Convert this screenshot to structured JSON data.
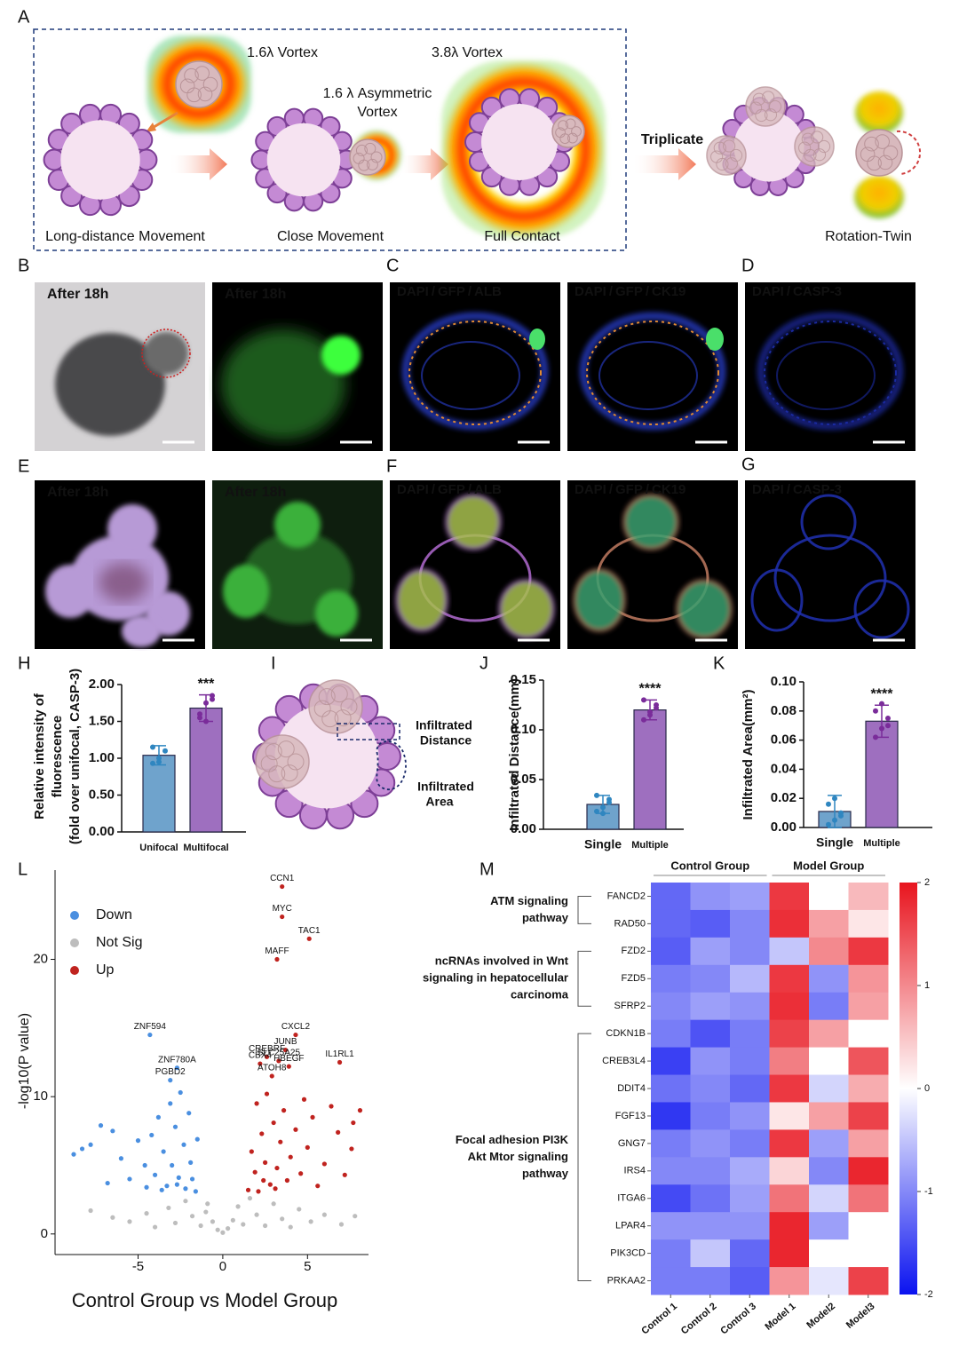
{
  "panel_labels": [
    "A",
    "B",
    "C",
    "D",
    "E",
    "F",
    "G",
    "H",
    "I",
    "J",
    "K",
    "L",
    "M"
  ],
  "schematic": {
    "vortex_small": "1.6λ Vortex",
    "vortex_large": "3.8λ Vortex",
    "asymmetric_vortex": [
      "1.6 λ Asymmetric",
      "Vortex"
    ],
    "triplicate": "Triplicate",
    "steps": [
      "Long-distance Movement",
      "Close Movement",
      "Full Contact",
      "Rotation-Twin"
    ]
  },
  "separator": "/",
  "images": [
    {
      "caption": "After 18h"
    },
    {
      "caption": "After 18h"
    },
    {
      "stains": [
        {
          "text": "DAPI",
          "color": "#1f6fd6"
        },
        {
          "text": "GFP",
          "color": "#2fbf3f"
        },
        {
          "text": "ALB",
          "color": "#f08a24"
        }
      ]
    },
    {
      "stains": [
        {
          "text": "DAPI",
          "color": "#1f6fd6"
        },
        {
          "text": "GFP",
          "color": "#2fbf3f"
        },
        {
          "text": "CK19",
          "color": "#f08a24"
        }
      ]
    },
    {
      "stains": [
        {
          "text": "DAPI",
          "color": "#1f6fd6"
        },
        {
          "text": "CASP-3",
          "color": "#f08a24"
        }
      ]
    },
    {
      "caption": "After 18h"
    },
    {
      "caption": "After 18h"
    },
    {
      "stains": [
        {
          "text": "DAPI",
          "color": "#1f6fd6"
        },
        {
          "text": "GFP",
          "color": "#2fbf3f"
        },
        {
          "text": "ALB",
          "color": "#f08a24"
        }
      ]
    },
    {
      "stains": [
        {
          "text": "DAPI",
          "color": "#1f6fd6"
        },
        {
          "text": "GFP",
          "color": "#2fbf3f"
        },
        {
          "text": "CK19",
          "color": "#f08a24"
        }
      ]
    },
    {
      "stains": [
        {
          "text": "DAPI",
          "color": "#1f6fd6"
        },
        {
          "text": "CASP-3",
          "color": "#f08a24"
        }
      ]
    }
  ],
  "infiltration_diagram": {
    "distance": [
      "Infiltrated",
      "Distance"
    ],
    "area": [
      "Infiltrated",
      "Area"
    ]
  },
  "chart_data": [
    {
      "type": "bar",
      "categories": [
        "Unifocal",
        "Multifocal"
      ],
      "values": [
        1.04,
        1.68
      ],
      "errors": [
        0.13,
        0.18
      ],
      "points": [
        [
          0.93,
          1.0,
          1.1,
          1.15,
          0.95
        ],
        [
          1.55,
          1.75,
          1.85,
          1.6,
          1.5,
          1.8
        ]
      ],
      "colors": [
        "#6fa3cc",
        "#9e6fbf"
      ],
      "point_colors": [
        "#2f86c0",
        "#7a2c9a"
      ],
      "ylim": [
        0,
        2
      ],
      "yticks": [
        {
          "value": 0,
          "label": "0.00"
        },
        {
          "value": 0.5,
          "label": "0.50"
        },
        {
          "value": 1,
          "label": "1.00"
        },
        {
          "value": 1.5,
          "label": "1.50"
        },
        {
          "value": 2,
          "label": "2.00"
        }
      ],
      "ylabel": [
        "Relative intensity of",
        "fluorescence",
        "(fold over unifocal,  CASP-3)"
      ],
      "significance": "***"
    },
    {
      "type": "bar",
      "categories": [
        "Single",
        "Multiple"
      ],
      "values": [
        0.025,
        0.12
      ],
      "errors": [
        0.009,
        0.01
      ],
      "points": [
        [
          0.018,
          0.022,
          0.03,
          0.034,
          0.016,
          0.027
        ],
        [
          0.11,
          0.118,
          0.125,
          0.13,
          0.115,
          0.122
        ]
      ],
      "colors": [
        "#6fa3cc",
        "#9e6fbf"
      ],
      "point_colors": [
        "#2f86c0",
        "#7a2c9a"
      ],
      "ylim": [
        0,
        0.15
      ],
      "yticks": [
        {
          "value": 0,
          "label": "0.00"
        },
        {
          "value": 0.05,
          "label": "0.05"
        },
        {
          "value": 0.1,
          "label": "0.10"
        },
        {
          "value": 0.15,
          "label": "0.15"
        }
      ],
      "ylabel": "Infiltrated Distance(mm)",
      "significance": "****"
    },
    {
      "type": "bar",
      "categories": [
        "Single",
        "Multiple"
      ],
      "values": [
        0.011,
        0.073
      ],
      "errors": [
        0.011,
        0.011
      ],
      "points": [
        [
          0.002,
          0.005,
          0.01,
          0.016,
          0.02,
          0.008
        ],
        [
          0.062,
          0.068,
          0.075,
          0.08,
          0.085,
          0.07
        ]
      ],
      "colors": [
        "#6fa3cc",
        "#9e6fbf"
      ],
      "point_colors": [
        "#2f86c0",
        "#7a2c9a"
      ],
      "ylim": [
        0,
        0.1
      ],
      "yticks": [
        {
          "value": 0,
          "label": "0.00"
        },
        {
          "value": 0.02,
          "label": "0.02"
        },
        {
          "value": 0.04,
          "label": "0.04"
        },
        {
          "value": 0.06,
          "label": "0.06"
        },
        {
          "value": 0.08,
          "label": "0.08"
        },
        {
          "value": 0.1,
          "label": "0.10"
        }
      ],
      "ylabel": "Infiltrated Area(mm²)",
      "significance": "****"
    },
    {
      "type": "scatter",
      "xlabel": "Control Group vs Model Group",
      "ylabel": "-log10(P value)",
      "xlim": [
        -9.9,
        8.6
      ],
      "ylim": [
        -1.5,
        26.5
      ],
      "xticks": [
        -5,
        0,
        5
      ],
      "yticks": [
        0,
        10,
        20
      ],
      "series": [
        {
          "name": "Down",
          "color": "#4a8fe0",
          "x": [
            -8.8,
            -8.3,
            -7.2,
            -6.5,
            -6,
            -5.5,
            -5,
            -4.6,
            -4.2,
            -4,
            -3.8,
            -3.5,
            -3.3,
            -3.1,
            -3,
            -2.8,
            -2.6,
            -2.5,
            -2.3,
            -2.2,
            -2,
            -1.9,
            -1.8,
            -1.6,
            -1.5,
            -2.7,
            -3.6,
            -4.5,
            -6.8,
            -7.8
          ],
          "values": [
            5.8,
            6.2,
            7.9,
            7.5,
            5.5,
            4,
            6.8,
            5,
            7.2,
            4.3,
            8.5,
            6,
            3.5,
            9.5,
            5,
            7.8,
            4.1,
            10.3,
            6.5,
            3.3,
            8.8,
            5.2,
            4,
            3.1,
            6.9,
            3.6,
            3.2,
            3.4,
            3.7,
            6.5
          ]
        },
        {
          "name": "Not Sig",
          "color": "#bdbdbd",
          "x": [
            -7.8,
            -6.5,
            -5.5,
            -4.5,
            -4,
            -3.2,
            -2.8,
            -2.2,
            -1.8,
            -1.3,
            -0.9,
            -0.6,
            -0.3,
            0,
            0.3,
            0.6,
            0.9,
            1.2,
            1.6,
            2,
            2.5,
            3,
            3.5,
            4,
            4.5,
            5.2,
            6,
            7,
            7.8,
            -1
          ],
          "values": [
            1.7,
            1.2,
            0.9,
            1.5,
            0.5,
            1.9,
            0.8,
            2.4,
            1.3,
            0.6,
            2.2,
            0.9,
            0.3,
            0.1,
            0.4,
            1,
            2,
            0.7,
            2.6,
            1.4,
            0.6,
            2.2,
            1.1,
            0.5,
            1.8,
            0.9,
            1.4,
            0.7,
            1.3,
            1.6
          ]
        },
        {
          "name": "Up",
          "color": "#c0231f",
          "x": [
            1.5,
            1.7,
            1.9,
            2,
            2.1,
            2.3,
            2.5,
            2.6,
            2.8,
            3,
            3.2,
            3.4,
            3.6,
            3.8,
            4,
            4.3,
            4.6,
            5,
            5.3,
            5.6,
            6,
            6.4,
            6.8,
            7.2,
            7.7,
            7.6,
            8.1,
            4.8,
            2.4,
            3.1
          ],
          "values": [
            3.2,
            6,
            4.5,
            9.5,
            3.1,
            7.3,
            5.2,
            10.2,
            3.6,
            8.1,
            4.8,
            6.7,
            9,
            3.9,
            5.6,
            7.6,
            4.4,
            6.3,
            8.5,
            3.5,
            5.1,
            9.3,
            7.4,
            4.3,
            8.1,
            6.2,
            9,
            9.8,
            3.9,
            3.3
          ]
        }
      ],
      "annotations": [
        {
          "text": "CCN1",
          "x": 3.5,
          "y": 25.3
        },
        {
          "text": "MYC",
          "x": 3.5,
          "y": 23.1
        },
        {
          "text": "TAC1",
          "x": 5.1,
          "y": 21.5
        },
        {
          "text": "MAFF",
          "x": 3.2,
          "y": 20
        },
        {
          "text": "CXCL2",
          "x": 4.3,
          "y": 14.5
        },
        {
          "text": "JUNB",
          "x": 3.7,
          "y": 13.4
        },
        {
          "text": "IL1RL1",
          "x": 6.9,
          "y": 12.5
        },
        {
          "text": "CREBRF",
          "x": 2.6,
          "y": 12.9
        },
        {
          "text": "SLC25A25",
          "x": 3.3,
          "y": 12.6
        },
        {
          "text": "HBEGF",
          "x": 3.9,
          "y": 12.2
        },
        {
          "text": "CBX4",
          "x": 2.2,
          "y": 12.4
        },
        {
          "text": "ATOH8",
          "x": 2.9,
          "y": 11.5
        },
        {
          "text": "ZNF594",
          "x": -4.3,
          "y": 14.5
        },
        {
          "text": "ZNF780A",
          "x": -2.7,
          "y": 12.1
        },
        {
          "text": "PGBD2",
          "x": -3.1,
          "y": 11.2
        }
      ]
    },
    {
      "type": "heatmap",
      "column_groups": [
        {
          "name": "Control Group",
          "columns": [
            "Control 1",
            "Control 2",
            "Control 3"
          ]
        },
        {
          "name": "Model Group",
          "columns": [
            "Model 1",
            "Model2",
            "Model3"
          ]
        }
      ],
      "row_groups": [
        {
          "label": [
            "ATM signaling",
            "pathway"
          ],
          "genes": [
            "FANCD2",
            "RAD50"
          ],
          "values": [
            [
              -1.1,
              -0.7,
              -0.6,
              1.6,
              0.0,
              0.4
            ],
            [
              -1.1,
              -1.2,
              -0.8,
              1.7,
              0.6,
              0.1
            ]
          ]
        },
        {
          "label": [
            "ncRNAs involved in Wnt",
            "signaling in hepatocellular",
            "carcinoma"
          ],
          "genes": [
            "FZD2",
            "FZD5",
            "SFRP2"
          ],
          "values": [
            [
              -1.2,
              -0.6,
              -0.8,
              -0.3,
              0.8,
              1.6
            ],
            [
              -0.9,
              -0.8,
              -0.4,
              1.6,
              -0.7,
              0.7
            ],
            [
              -0.8,
              -0.6,
              -0.7,
              1.7,
              -0.9,
              0.6
            ]
          ]
        },
        {
          "label": [
            "Focal adhesion PI3K",
            "Akt Mtor signaling",
            "pathway"
          ],
          "genes": [
            "CDKN1B",
            "CREB3L4",
            "DDIT4",
            "FGF13",
            "GNG7",
            "IRS4",
            "ITGA6",
            "LPAR4",
            "PIK3CD",
            "PRKAA2"
          ],
          "values": [
            [
              -0.9,
              -1.3,
              -0.9,
              1.5,
              0.6,
              0.0
            ],
            [
              -1.5,
              -0.7,
              -0.9,
              0.9,
              0.0,
              1.3
            ],
            [
              -1.0,
              -0.8,
              -1.1,
              1.6,
              -0.2,
              0.5
            ],
            [
              -1.6,
              -0.9,
              -0.7,
              0.1,
              0.6,
              1.5
            ],
            [
              -0.9,
              -0.7,
              -0.9,
              1.6,
              -0.6,
              0.6
            ],
            [
              -0.8,
              -0.8,
              -0.5,
              0.2,
              -0.8,
              1.8
            ],
            [
              -1.4,
              -1.0,
              -0.6,
              1.0,
              -0.2,
              1.0
            ],
            [
              -0.7,
              -0.7,
              -0.7,
              1.8,
              -0.6,
              0.0
            ],
            [
              -0.9,
              -0.3,
              -1.1,
              1.8,
              0.0,
              0.0
            ],
            [
              -0.9,
              -0.9,
              -1.2,
              0.7,
              -0.1,
              1.5
            ]
          ]
        }
      ],
      "colorbar_lim": [
        -2,
        2
      ],
      "colorbar_ticks": [
        2,
        1,
        0,
        -1,
        -2
      ],
      "colors": {
        "low": "#0a12f0",
        "mid": "#ffffff",
        "high": "#e8141e"
      }
    }
  ]
}
